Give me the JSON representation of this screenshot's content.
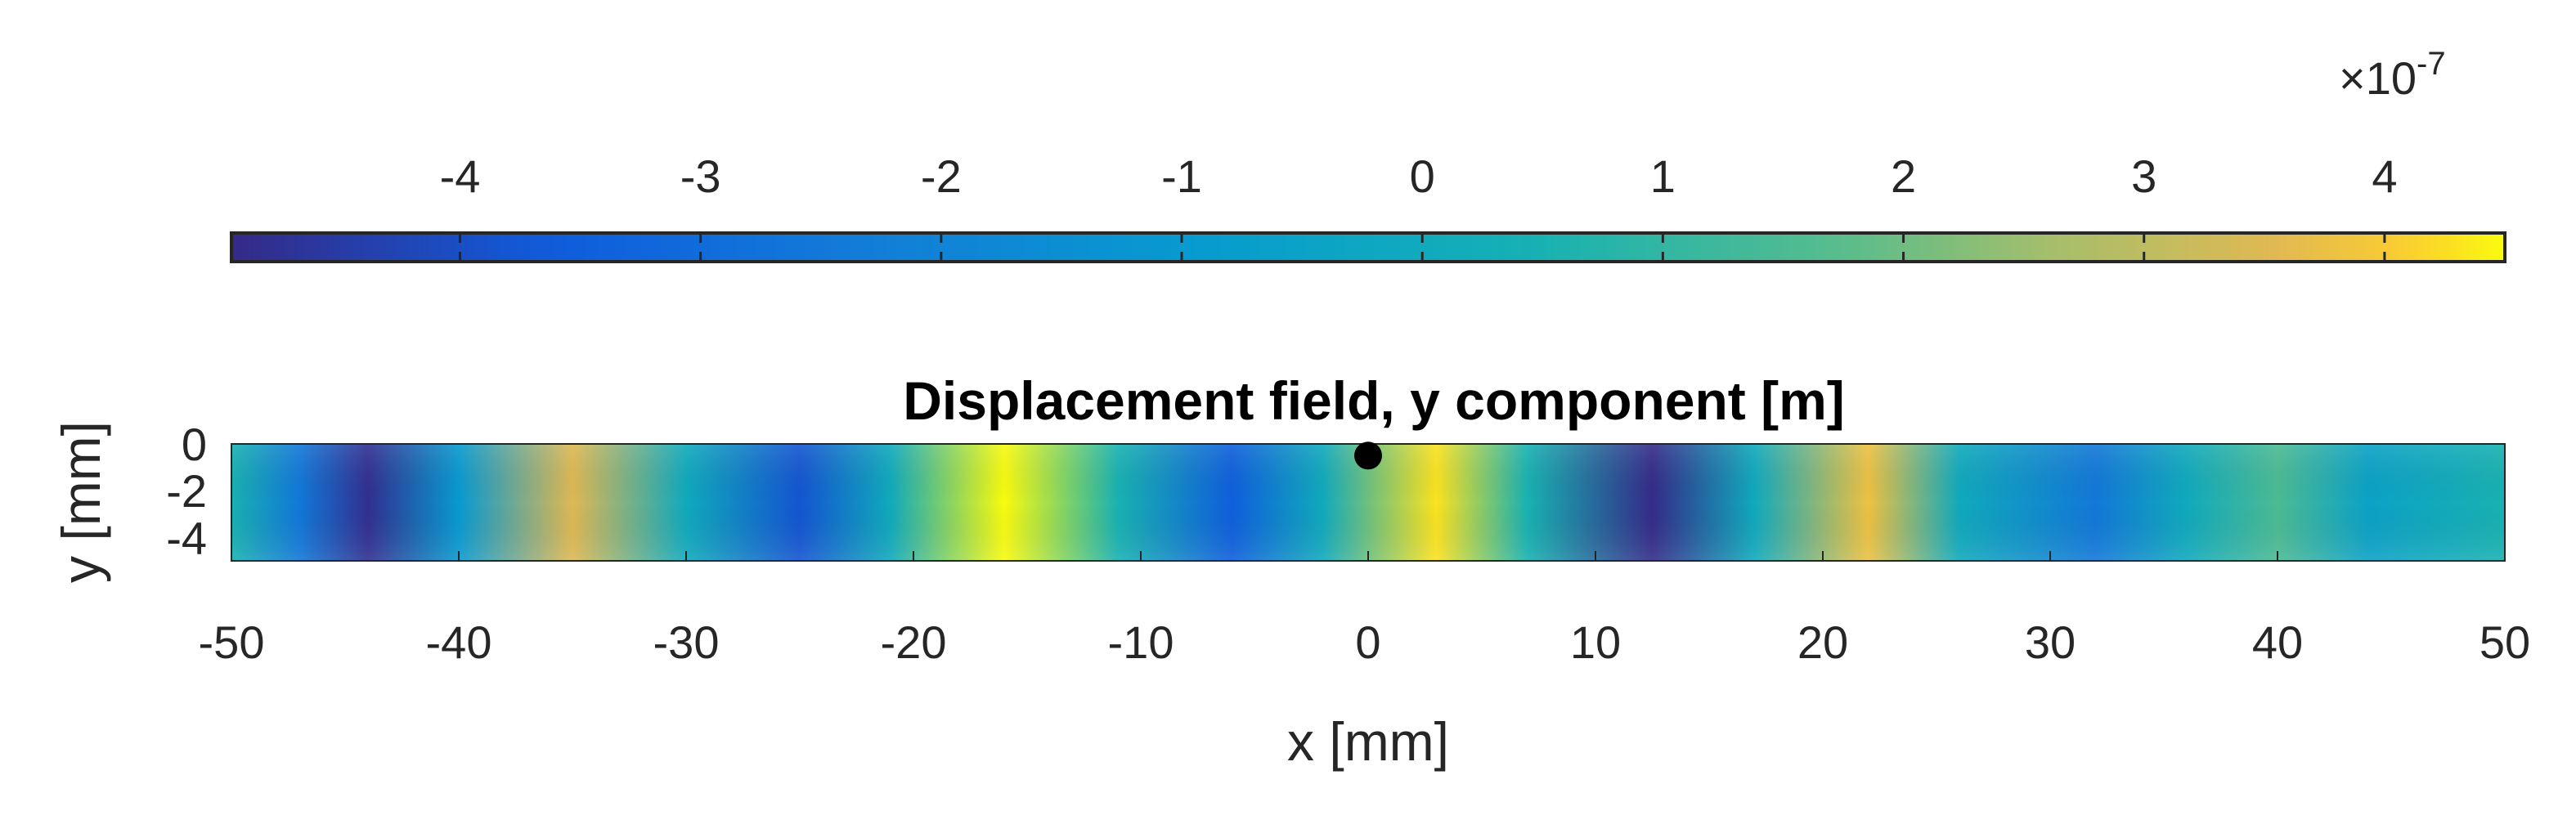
{
  "chart_data": {
    "type": "heatmap",
    "title": "Displacement field, y component [m]",
    "xlabel": "x [mm]",
    "ylabel": "y [mm]",
    "xlim": [
      -50,
      50
    ],
    "ylim": [
      -5,
      0
    ],
    "xticks": [
      -50,
      -40,
      -30,
      -20,
      -10,
      0,
      10,
      20,
      30,
      40,
      50
    ],
    "xtick_labels": [
      "-50",
      "-40",
      "-30",
      "-20",
      "-10",
      "0",
      "10",
      "20",
      "30",
      "40",
      "50"
    ],
    "yticks": [
      0,
      -2,
      -4
    ],
    "ytick_labels": [
      "0",
      "-2",
      "-4"
    ],
    "colormap": "parula",
    "colorbar": {
      "location": "top",
      "limits": [
        -4.95,
        4.5
      ],
      "exponent_label": "×10",
      "exponent_power": "-7",
      "ticks": [
        -4,
        -3,
        -2,
        -1,
        0,
        1,
        2,
        3,
        4
      ],
      "tick_labels": [
        "-4",
        "-3",
        "-2",
        "-1",
        "0",
        "1",
        "2",
        "3",
        "4"
      ]
    },
    "field_profile_x": [
      -50,
      -47,
      -44,
      -40,
      -35,
      -30,
      -25,
      -21,
      -16,
      -11,
      -6,
      -2,
      3,
      7,
      12.5,
      17,
      22,
      26,
      32,
      36,
      40,
      44,
      50
    ],
    "field_profile_value": [
      0.5,
      -2.5,
      -4.8,
      -1.0,
      3.5,
      0.0,
      -3.8,
      0.0,
      4.5,
      0.5,
      -3.5,
      0.0,
      4.3,
      0.5,
      -4.9,
      0.0,
      3.8,
      0.0,
      -2.5,
      0.0,
      1.5,
      -0.5,
      0.5
    ],
    "marker": {
      "x": 0,
      "y": -0.5,
      "color": "#000000",
      "shape": "circle"
    }
  }
}
